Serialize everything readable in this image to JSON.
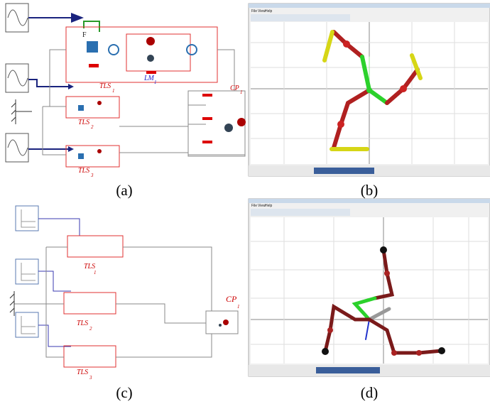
{
  "panels": [
    {
      "caption": "(a)",
      "labels": [
        {
          "text": "F"
        },
        {
          "text": "TLS",
          "sub": "1"
        },
        {
          "text": "LM",
          "sub": "1"
        },
        {
          "text": "TLS",
          "sub": "2"
        },
        {
          "text": "TLS",
          "sub": "3"
        },
        {
          "text": "CP",
          "sub": "1"
        }
      ]
    },
    {
      "caption": "(b)",
      "menu": [
        "File",
        "View",
        "Help"
      ]
    },
    {
      "caption": "(c)",
      "labels": [
        {
          "text": "TLS",
          "sub": "1"
        },
        {
          "text": "TLS",
          "sub": "2"
        },
        {
          "text": "TLS",
          "sub": "3"
        },
        {
          "text": "CP",
          "sub": "1"
        }
      ]
    },
    {
      "caption": "(d)",
      "menu": [
        "File",
        "View",
        "Help"
      ]
    }
  ]
}
